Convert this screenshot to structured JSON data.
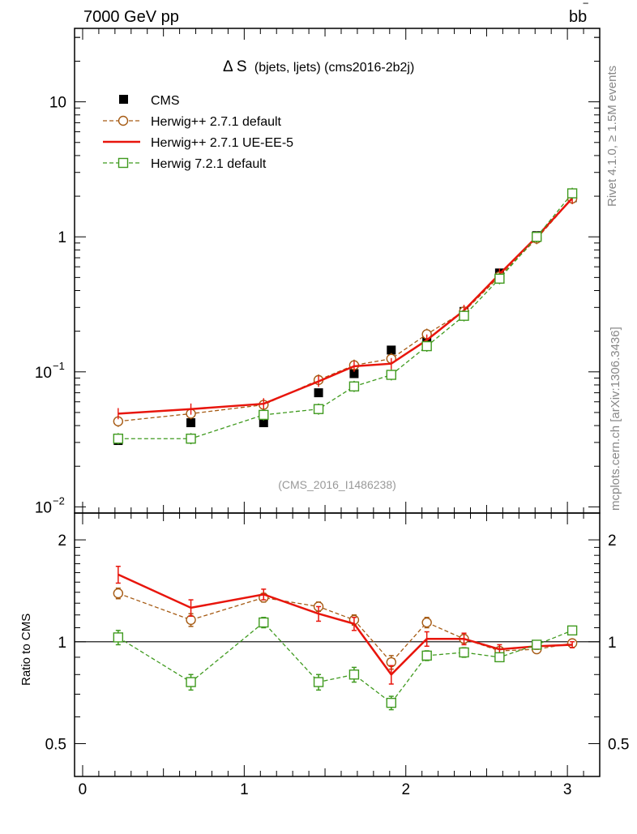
{
  "header": {
    "energy_label": "7000 GeV pp",
    "process_label": "bb",
    "process_bar": "‾"
  },
  "side_labels": {
    "rivet": "Rivet 4.1.0, ≥ 1.5M events",
    "mcplots": "mcplots.cern.ch [arXiv:1306.3436]"
  },
  "chart_data": {
    "type": "line",
    "title": "Δ S",
    "subtitle": "(bjets, ljets) (cms2016-2b2j)",
    "watermark": "(CMS_2016_I1486238)",
    "xlabel": "",
    "ylabel": "",
    "xlim": [
      -0.05,
      3.2
    ],
    "ylim": [
      0.009,
      35
    ],
    "ratio_ylabel": "Ratio to CMS",
    "ratio_ylim": [
      0.4,
      2.4
    ],
    "x": [
      0.22,
      0.67,
      1.12,
      1.46,
      1.68,
      1.91,
      2.13,
      2.36,
      2.58,
      2.81,
      3.03
    ],
    "main_ticks": {
      "values": [
        0.01,
        0.1,
        1,
        10
      ],
      "labels": [
        "10",
        "10",
        "1",
        "10"
      ],
      "exponents": [
        "−2",
        "−1",
        "",
        ""
      ]
    },
    "x_ticks": {
      "values": [
        0,
        1,
        2,
        3
      ],
      "labels": [
        "0",
        "1",
        "2",
        "3"
      ]
    },
    "ratio_ticks": {
      "values": [
        0.5,
        1,
        2
      ],
      "labels": [
        "0.5",
        "1",
        "2"
      ]
    },
    "series": [
      {
        "name": "CMS",
        "style": "data",
        "color": "#000000",
        "values": [
          0.031,
          0.042,
          0.042,
          0.07,
          0.097,
          0.145,
          0.17,
          0.28,
          0.54,
          1.02,
          1.95
        ]
      },
      {
        "name": "Herwig++ 2.7.1 default",
        "style": "circle-dashed",
        "color": "#a65b14",
        "values": [
          0.043,
          0.049,
          0.057,
          0.087,
          0.112,
          0.125,
          0.19,
          0.28,
          0.51,
          0.97,
          1.92
        ],
        "ratio": [
          1.39,
          1.16,
          1.35,
          1.27,
          1.16,
          0.87,
          1.14,
          1.02,
          0.94,
          0.95,
          0.99
        ],
        "ratio_err": [
          0.05,
          0.05,
          0.04,
          0.04,
          0.04,
          0.04,
          0.04,
          0.03,
          0.02,
          0.02,
          0.01
        ]
      },
      {
        "name": "Herwig++ 2.7.1 UE-EE-5",
        "style": "solid",
        "color": "#e8150c",
        "values": [
          0.049,
          0.053,
          0.058,
          0.085,
          0.11,
          0.115,
          0.172,
          0.285,
          0.53,
          1.0,
          1.93
        ],
        "ratio": [
          1.58,
          1.26,
          1.38,
          1.21,
          1.13,
          0.8,
          1.02,
          1.02,
          0.95,
          0.97,
          0.98
        ],
        "ratio_err": [
          0.09,
          0.07,
          0.05,
          0.06,
          0.05,
          0.05,
          0.05,
          0.04,
          0.03,
          0.02,
          0.02
        ]
      },
      {
        "name": "Herwig 7.2.1 default",
        "style": "square-dashed",
        "color": "#3f9a1e",
        "values": [
          0.032,
          0.032,
          0.048,
          0.053,
          0.078,
          0.095,
          0.155,
          0.26,
          0.49,
          1.0,
          2.1
        ],
        "ratio": [
          1.03,
          0.76,
          1.14,
          0.76,
          0.8,
          0.66,
          0.91,
          0.93,
          0.9,
          0.98,
          1.08
        ],
        "ratio_err": [
          0.05,
          0.04,
          0.04,
          0.04,
          0.04,
          0.03,
          0.03,
          0.03,
          0.02,
          0.02,
          0.01
        ]
      }
    ]
  }
}
